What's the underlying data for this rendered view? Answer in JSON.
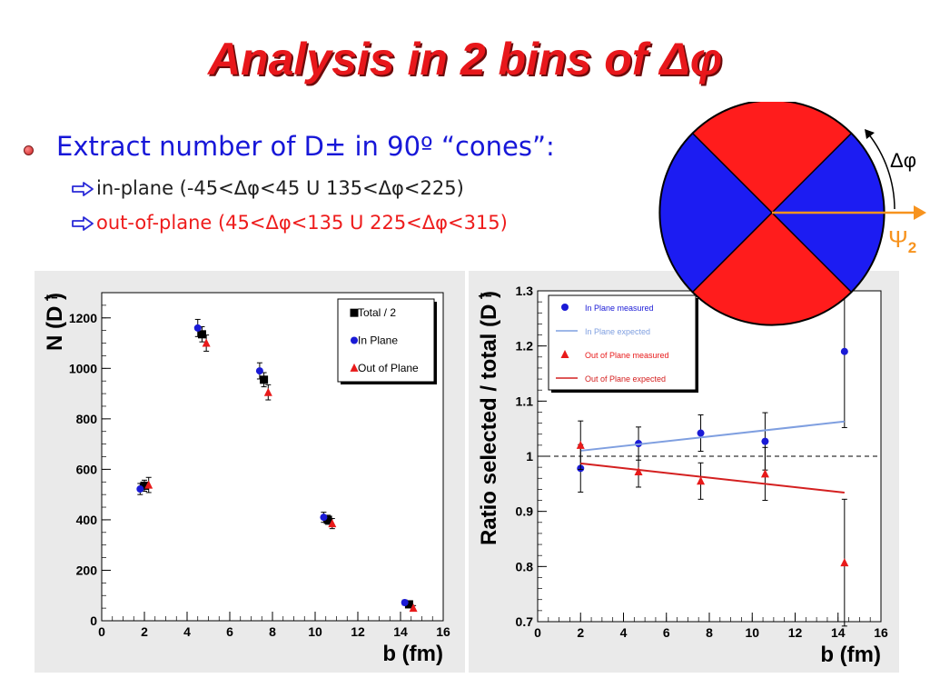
{
  "slide": {
    "title": "Analysis in 2 bins of Δφ",
    "bullet": "Extract number of D± in 90º “cones”:",
    "sub1": "in-plane (-45<Δφ<45 U 135<Δφ<225)",
    "sub2": "out-of-plane (45<Δφ<135 U 225<Δφ<315)"
  },
  "diagram": {
    "angle_label": "Δφ",
    "psi_symbol": "Ψ",
    "psi_sub": "2",
    "colors": {
      "red": "#ff1c1c",
      "blue": "#1c1cf2",
      "arrow": "#f7931e"
    }
  },
  "chart_data": [
    {
      "type": "scatter",
      "xlabel": "b (fm)",
      "ylabel": "N (D )",
      "ylabel_superscript": "+−",
      "xlim": [
        0,
        16
      ],
      "ylim": [
        0,
        1300
      ],
      "x_ticks": [
        "0",
        "2",
        "4",
        "6",
        "8",
        "10",
        "12",
        "14",
        "16"
      ],
      "y_ticks": [
        "0",
        "200",
        "400",
        "600",
        "800",
        "1000",
        "1200"
      ],
      "legend": [
        "Total / 2",
        "In Plane",
        "Out of Plane"
      ],
      "legend_position": "top-right",
      "series": [
        {
          "name": "Total / 2",
          "marker": "square",
          "color": "#000000",
          "points": [
            {
              "x": 2.0,
              "y": 535,
              "err": 22
            },
            {
              "x": 4.7,
              "y": 1135,
              "err": 30
            },
            {
              "x": 7.6,
              "y": 955,
              "err": 28
            },
            {
              "x": 10.6,
              "y": 400,
              "err": 18
            },
            {
              "x": 14.4,
              "y": 65,
              "err": 10
            }
          ]
        },
        {
          "name": "In Plane",
          "marker": "circle",
          "color": "#1a1ad6",
          "points": [
            {
              "x": 1.8,
              "y": 522,
              "err": 22
            },
            {
              "x": 4.5,
              "y": 1160,
              "err": 34
            },
            {
              "x": 7.4,
              "y": 990,
              "err": 32
            },
            {
              "x": 10.4,
              "y": 410,
              "err": 20
            },
            {
              "x": 14.2,
              "y": 72,
              "err": 10
            }
          ]
        },
        {
          "name": "Out of Plane",
          "marker": "triangle",
          "color": "#e81a1a",
          "points": [
            {
              "x": 2.2,
              "y": 538,
              "err": 30
            },
            {
              "x": 4.9,
              "y": 1100,
              "err": 32
            },
            {
              "x": 7.8,
              "y": 905,
              "err": 30
            },
            {
              "x": 10.8,
              "y": 385,
              "err": 20
            },
            {
              "x": 14.6,
              "y": 50,
              "err": 10
            }
          ]
        }
      ]
    },
    {
      "type": "scatter",
      "xlabel": "b (fm)",
      "ylabel": "Ratio selected / total (D )",
      "ylabel_superscript": "+−",
      "xlim": [
        0,
        16
      ],
      "ylim": [
        0.7,
        1.3
      ],
      "x_ticks": [
        "0",
        "2",
        "4",
        "6",
        "8",
        "10",
        "12",
        "14",
        "16"
      ],
      "y_ticks": [
        "0.7",
        "0.8",
        "0.9",
        "1",
        "1.1",
        "1.2",
        "1.3"
      ],
      "legend": [
        "In Plane measured",
        "In Plane expected",
        "Out of Plane measured",
        "Out of Plane expected"
      ],
      "legend_position": "top-left",
      "reference_line": 1.0,
      "series": [
        {
          "name": "In Plane measured",
          "marker": "circle",
          "color": "#1a1ad6",
          "points": [
            {
              "x": 2.0,
              "y": 0.978,
              "err": 0.043
            },
            {
              "x": 4.7,
              "y": 1.023,
              "err": 0.03
            },
            {
              "x": 7.6,
              "y": 1.042,
              "err": 0.033
            },
            {
              "x": 10.6,
              "y": 1.027,
              "err": 0.052
            },
            {
              "x": 14.3,
              "y": 1.19,
              "err": 0.138
            }
          ]
        },
        {
          "name": "In Plane expected",
          "line": true,
          "color": "#7f9fe0",
          "x": [
            2.0,
            14.3
          ],
          "y": [
            1.01,
            1.063
          ]
        },
        {
          "name": "Out of Plane measured",
          "marker": "triangle",
          "color": "#e81a1a",
          "points": [
            {
              "x": 2.0,
              "y": 1.02,
              "err": 0.044
            },
            {
              "x": 4.7,
              "y": 0.972,
              "err": 0.028
            },
            {
              "x": 7.6,
              "y": 0.955,
              "err": 0.033
            },
            {
              "x": 10.6,
              "y": 0.968,
              "err": 0.048
            },
            {
              "x": 14.3,
              "y": 0.807,
              "err": 0.115
            }
          ]
        },
        {
          "name": "Out of Plane expected",
          "line": true,
          "color": "#d42020",
          "x": [
            2.0,
            14.3
          ],
          "y": [
            0.987,
            0.934
          ]
        }
      ]
    }
  ]
}
